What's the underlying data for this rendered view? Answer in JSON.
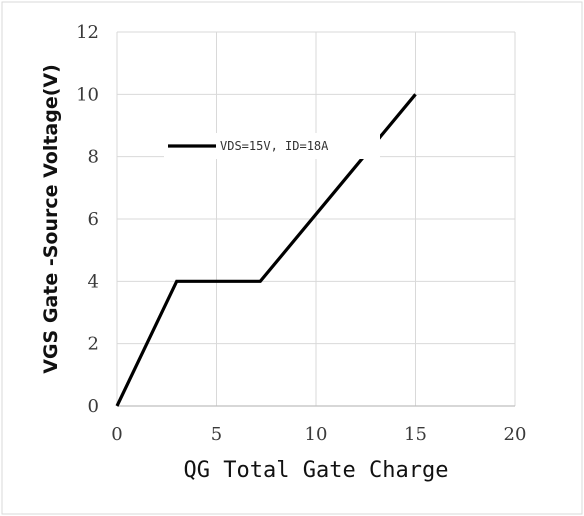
{
  "chart_data": {
    "type": "line",
    "title": "",
    "xlabel": "QG Total Gate Charge",
    "ylabel": "VGS Gate -Source Voltage(V)",
    "xlim": [
      0,
      20
    ],
    "ylim": [
      0,
      12
    ],
    "x_ticks": [
      0,
      5,
      10,
      15,
      20
    ],
    "y_ticks": [
      0,
      2,
      4,
      6,
      8,
      10,
      12
    ],
    "grid": true,
    "legend_position": "center-left",
    "series": [
      {
        "name": "VDS=15V, ID=18A",
        "color": "#000000",
        "x": [
          0,
          3,
          7.2,
          15
        ],
        "y": [
          0,
          4,
          4,
          10
        ]
      }
    ]
  },
  "colors": {
    "grid": "#d9d9d9",
    "axis": "#bfbfbf",
    "frame_border": "#d9d9d9",
    "line": "#000000"
  }
}
